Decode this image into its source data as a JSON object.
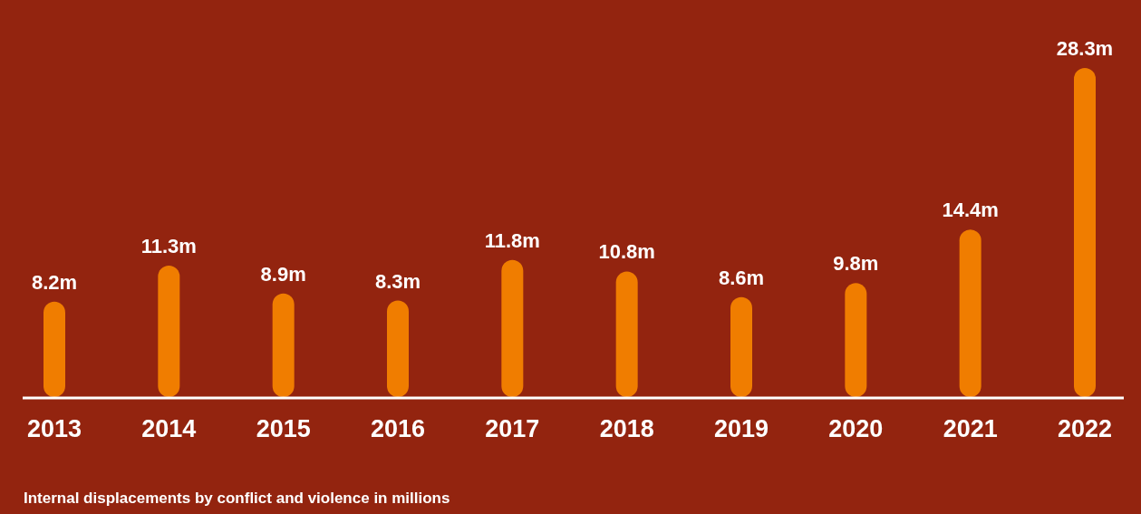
{
  "chart_data": {
    "type": "bar",
    "categories": [
      "2013",
      "2014",
      "2015",
      "2016",
      "2017",
      "2018",
      "2019",
      "2020",
      "2021",
      "2022"
    ],
    "values": [
      8.2,
      11.3,
      8.9,
      8.3,
      11.8,
      10.8,
      8.6,
      9.8,
      14.4,
      28.3
    ],
    "value_labels": [
      "8.2m",
      "11.3m",
      "8.9m",
      "8.3m",
      "11.8m",
      "10.8m",
      "8.6m",
      "9.8m",
      "14.4m",
      "28.3m"
    ],
    "color": "#f07d00",
    "annotations": [
      "Internal displacements by conflict and violence in millions"
    ]
  }
}
